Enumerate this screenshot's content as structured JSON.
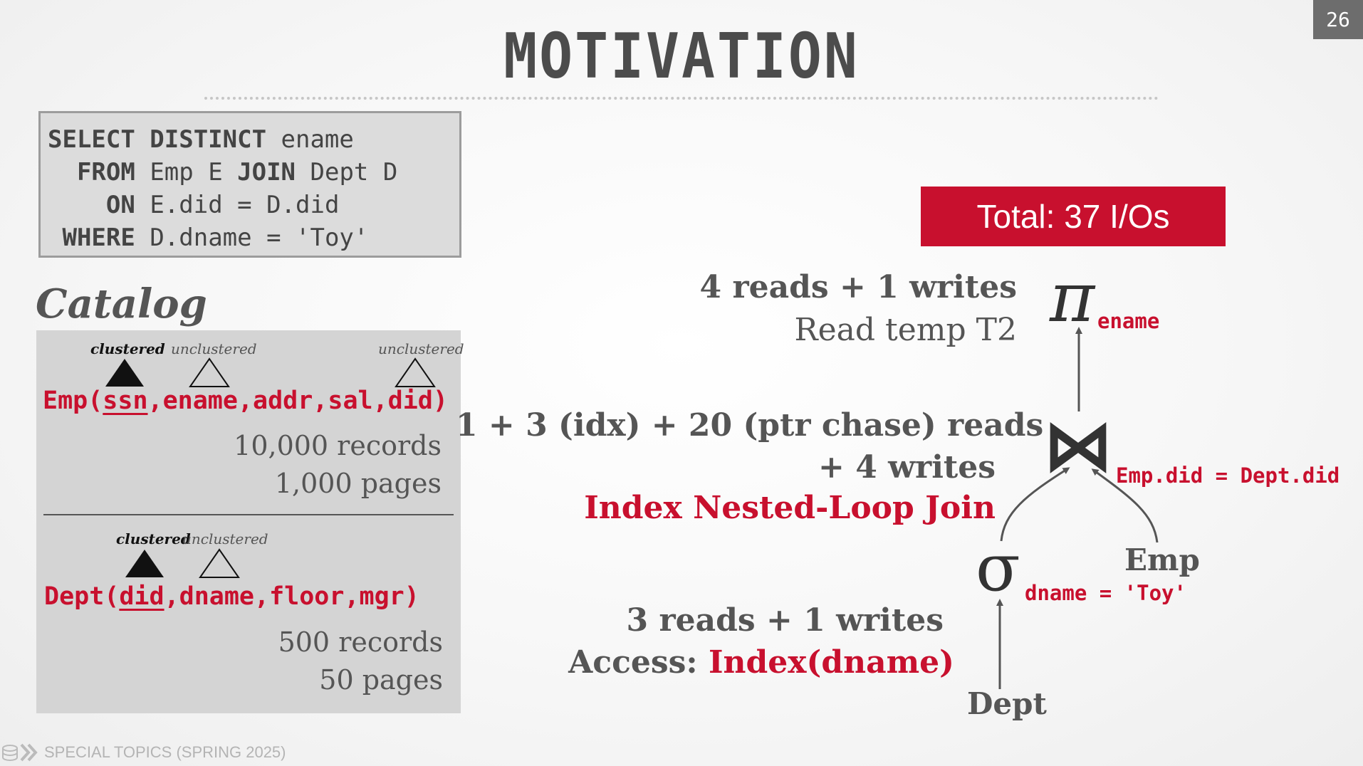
{
  "slide_number": "26",
  "title": "MOTIVATION",
  "sql": {
    "line1_kw": "SELECT DISTINCT",
    "line1_rest": " ename",
    "line2_kw": "FROM",
    "line2_rest": " Emp E ",
    "line2_kw2": "JOIN",
    "line2_rest2": " Dept D",
    "line3_kw": "ON",
    "line3_rest": " E.did = D.did",
    "line4_kw": "WHERE",
    "line4_rest": " D.dname = 'Toy'"
  },
  "catalog": {
    "title": "Catalog",
    "emp": {
      "labels": [
        "clustered",
        "unclustered",
        "unclustered"
      ],
      "schema_prefix": "Emp(",
      "key": "ssn",
      "schema_rest": ",ename,addr,sal,did)",
      "records": "10,000 records",
      "pages": "1,000 pages"
    },
    "dept": {
      "labels": [
        "clustered",
        "unclustered"
      ],
      "schema_prefix": "Dept(",
      "key": "did",
      "schema_rest": ",dname,floor,mgr)",
      "records": "500 records",
      "pages": "50 pages"
    }
  },
  "plan": {
    "total": "Total: 37 I/Os",
    "projection": {
      "symbol": "π",
      "attr": "ename",
      "cost": "4 reads + 1 writes",
      "detail": "Read temp T2"
    },
    "join": {
      "symbol": "⋈",
      "predicate": "Emp.did = Dept.did",
      "cost_line1": "1 + 3 (idx) + 20 (ptr chase) reads",
      "cost_line2": "+ 4 writes",
      "algorithm": "Index Nested-Loop Join"
    },
    "selection": {
      "symbol": "σ",
      "predicate": "dname = 'Toy'",
      "cost": "3 reads + 1 writes",
      "access_label": "Access: ",
      "access_method": "Index(dname)"
    },
    "relations": {
      "left": "Dept",
      "right": "Emp"
    }
  },
  "footer": {
    "text": "SPECIAL TOPICS (SPRING 2025)"
  },
  "colors": {
    "accent": "#c8102e",
    "text": "#555555",
    "box": "#d4d4d4"
  }
}
